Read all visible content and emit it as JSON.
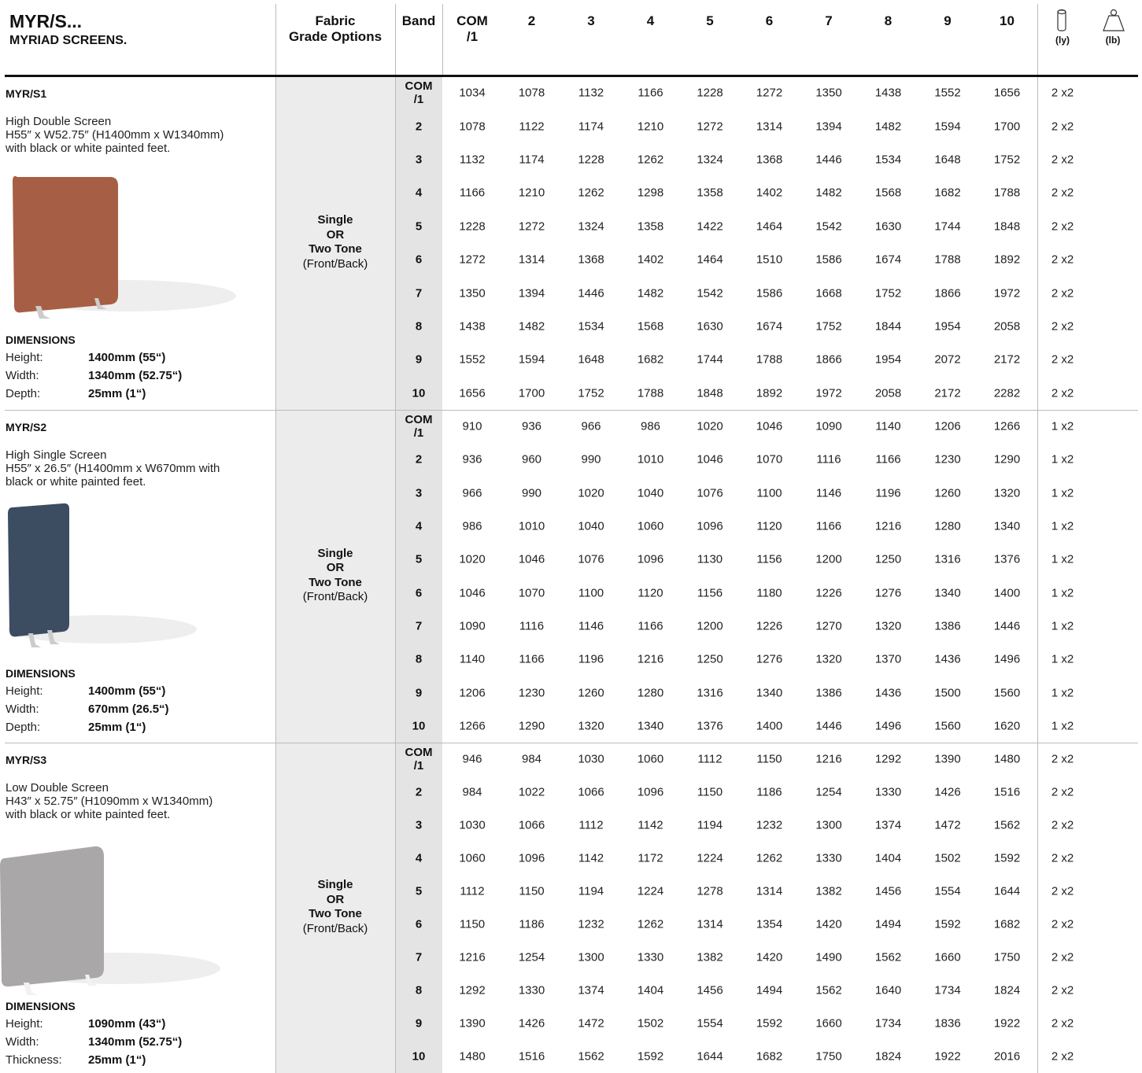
{
  "header": {
    "title": "MYR/S...",
    "subtitle": "MYRIAD SCREENS.",
    "columns": [
      "Fabric\nGrade Options",
      "Band",
      "COM\n/1",
      "2",
      "3",
      "4",
      "5",
      "6",
      "7",
      "8",
      "9",
      "10"
    ],
    "icons": [
      "(ly)",
      "(lb)"
    ]
  },
  "products": [
    {
      "code": "MYR/S1",
      "description": [
        "High Double Screen",
        "H55″ x W52.75″ (H1400mm x W1340mm)",
        "with black or white painted feet."
      ],
      "dimensions_title": "DIMENSIONS",
      "dimensions": [
        [
          "Height:",
          "1400mm (55“)"
        ],
        [
          "Width:",
          "1340mm (52.75“)"
        ],
        [
          "Depth:",
          "25mm (1“)"
        ]
      ],
      "fabric": [
        "Single",
        "OR",
        "Two Tone",
        "(Front/Back)"
      ],
      "rows": [
        {
          "band": "COM\n/1",
          "prices": [
            1034,
            1078,
            1132,
            1166,
            1228,
            1272,
            1350,
            1438,
            1552,
            1656
          ],
          "ly": "2 x2"
        },
        {
          "band": "2",
          "prices": [
            1078,
            1122,
            1174,
            1210,
            1272,
            1314,
            1394,
            1482,
            1594,
            1700
          ],
          "ly": "2 x2"
        },
        {
          "band": "3",
          "prices": [
            1132,
            1174,
            1228,
            1262,
            1324,
            1368,
            1446,
            1534,
            1648,
            1752
          ],
          "ly": "2 x2"
        },
        {
          "band": "4",
          "prices": [
            1166,
            1210,
            1262,
            1298,
            1358,
            1402,
            1482,
            1568,
            1682,
            1788
          ],
          "ly": "2 x2"
        },
        {
          "band": "5",
          "prices": [
            1228,
            1272,
            1324,
            1358,
            1422,
            1464,
            1542,
            1630,
            1744,
            1848
          ],
          "ly": "2 x2"
        },
        {
          "band": "6",
          "prices": [
            1272,
            1314,
            1368,
            1402,
            1464,
            1510,
            1586,
            1674,
            1788,
            1892
          ],
          "ly": "2 x2"
        },
        {
          "band": "7",
          "prices": [
            1350,
            1394,
            1446,
            1482,
            1542,
            1586,
            1668,
            1752,
            1866,
            1972
          ],
          "ly": "2 x2"
        },
        {
          "band": "8",
          "prices": [
            1438,
            1482,
            1534,
            1568,
            1630,
            1674,
            1752,
            1844,
            1954,
            2058
          ],
          "ly": "2 x2"
        },
        {
          "band": "9",
          "prices": [
            1552,
            1594,
            1648,
            1682,
            1744,
            1788,
            1866,
            1954,
            2072,
            2172
          ],
          "ly": "2 x2"
        },
        {
          "band": "10",
          "prices": [
            1656,
            1700,
            1752,
            1788,
            1848,
            1892,
            1972,
            2058,
            2172,
            2282
          ],
          "ly": "2 x2"
        }
      ]
    },
    {
      "code": "MYR/S2",
      "description": [
        "High Single Screen",
        "H55″ x 26.5″ (H1400mm x W670mm with",
        "black or white painted feet."
      ],
      "dimensions_title": "DIMENSIONS",
      "dimensions": [
        [
          "Height:",
          "1400mm (55“)"
        ],
        [
          "Width:",
          "670mm (26.5“)"
        ],
        [
          "Depth:",
          "25mm (1“)"
        ]
      ],
      "fabric": [
        "Single",
        "OR",
        "Two Tone",
        "(Front/Back)"
      ],
      "rows": [
        {
          "band": "COM\n/1",
          "prices": [
            910,
            936,
            966,
            986,
            1020,
            1046,
            1090,
            1140,
            1206,
            1266
          ],
          "ly": "1 x2"
        },
        {
          "band": "2",
          "prices": [
            936,
            960,
            990,
            1010,
            1046,
            1070,
            1116,
            1166,
            1230,
            1290
          ],
          "ly": "1 x2"
        },
        {
          "band": "3",
          "prices": [
            966,
            990,
            1020,
            1040,
            1076,
            1100,
            1146,
            1196,
            1260,
            1320
          ],
          "ly": "1 x2"
        },
        {
          "band": "4",
          "prices": [
            986,
            1010,
            1040,
            1060,
            1096,
            1120,
            1166,
            1216,
            1280,
            1340
          ],
          "ly": "1 x2"
        },
        {
          "band": "5",
          "prices": [
            1020,
            1046,
            1076,
            1096,
            1130,
            1156,
            1200,
            1250,
            1316,
            1376
          ],
          "ly": "1 x2"
        },
        {
          "band": "6",
          "prices": [
            1046,
            1070,
            1100,
            1120,
            1156,
            1180,
            1226,
            1276,
            1340,
            1400
          ],
          "ly": "1 x2"
        },
        {
          "band": "7",
          "prices": [
            1090,
            1116,
            1146,
            1166,
            1200,
            1226,
            1270,
            1320,
            1386,
            1446
          ],
          "ly": "1 x2"
        },
        {
          "band": "8",
          "prices": [
            1140,
            1166,
            1196,
            1216,
            1250,
            1276,
            1320,
            1370,
            1436,
            1496
          ],
          "ly": "1 x2"
        },
        {
          "band": "9",
          "prices": [
            1206,
            1230,
            1260,
            1280,
            1316,
            1340,
            1386,
            1436,
            1500,
            1560
          ],
          "ly": "1 x2"
        },
        {
          "band": "10",
          "prices": [
            1266,
            1290,
            1320,
            1340,
            1376,
            1400,
            1446,
            1496,
            1560,
            1620
          ],
          "ly": "1 x2"
        }
      ]
    },
    {
      "code": "MYR/S3",
      "description": [
        "Low Double Screen",
        "H43″ x 52.75″ (H1090mm x W1340mm)",
        "with black or white painted feet."
      ],
      "dimensions_title": "DIMENSIONS",
      "dimensions": [
        [
          "Height:",
          "1090mm (43“)"
        ],
        [
          "Width:",
          "1340mm (52.75“)"
        ],
        [
          "Thickness:",
          "25mm (1“)"
        ]
      ],
      "fabric": [
        "Single",
        "OR",
        "Two Tone",
        "(Front/Back)"
      ],
      "rows": [
        {
          "band": "COM\n/1",
          "prices": [
            946,
            984,
            1030,
            1060,
            1112,
            1150,
            1216,
            1292,
            1390,
            1480
          ],
          "ly": "2 x2"
        },
        {
          "band": "2",
          "prices": [
            984,
            1022,
            1066,
            1096,
            1150,
            1186,
            1254,
            1330,
            1426,
            1516
          ],
          "ly": "2 x2"
        },
        {
          "band": "3",
          "prices": [
            1030,
            1066,
            1112,
            1142,
            1194,
            1232,
            1300,
            1374,
            1472,
            1562
          ],
          "ly": "2 x2"
        },
        {
          "band": "4",
          "prices": [
            1060,
            1096,
            1142,
            1172,
            1224,
            1262,
            1330,
            1404,
            1502,
            1592
          ],
          "ly": "2 x2"
        },
        {
          "band": "5",
          "prices": [
            1112,
            1150,
            1194,
            1224,
            1278,
            1314,
            1382,
            1456,
            1554,
            1644
          ],
          "ly": "2 x2"
        },
        {
          "band": "6",
          "prices": [
            1150,
            1186,
            1232,
            1262,
            1314,
            1354,
            1420,
            1494,
            1592,
            1682
          ],
          "ly": "2 x2"
        },
        {
          "band": "7",
          "prices": [
            1216,
            1254,
            1300,
            1330,
            1382,
            1420,
            1490,
            1562,
            1660,
            1750
          ],
          "ly": "2 x2"
        },
        {
          "band": "8",
          "prices": [
            1292,
            1330,
            1374,
            1404,
            1456,
            1494,
            1562,
            1640,
            1734,
            1824
          ],
          "ly": "2 x2"
        },
        {
          "band": "9",
          "prices": [
            1390,
            1426,
            1472,
            1502,
            1554,
            1592,
            1660,
            1734,
            1836,
            1922
          ],
          "ly": "2 x2"
        },
        {
          "band": "10",
          "prices": [
            1480,
            1516,
            1562,
            1592,
            1644,
            1682,
            1750,
            1824,
            1922,
            2016
          ],
          "ly": "2 x2"
        }
      ]
    }
  ]
}
